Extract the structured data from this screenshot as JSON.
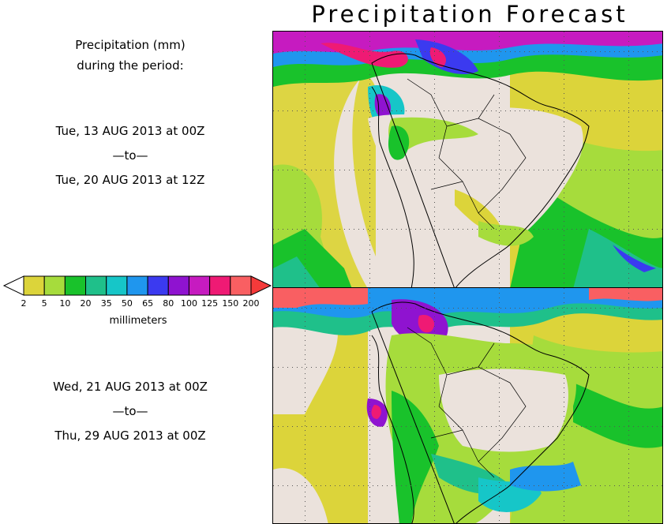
{
  "title": "Precipitation Forecast",
  "header": {
    "line1": "Precipitation (mm)",
    "line2": "during the period:"
  },
  "period1": {
    "start": "Tue, 13 AUG 2013 at 00Z",
    "sep": "—to—",
    "end": "Tue, 20 AUG 2013 at 12Z"
  },
  "period2": {
    "start": "Wed, 21 AUG 2013 at 00Z",
    "sep": "—to—",
    "end": "Thu, 29 AUG 2013 at 00Z"
  },
  "legend": {
    "units": "millimeters",
    "ticks": [
      "2",
      "5",
      "10",
      "20",
      "35",
      "50",
      "65",
      "80",
      "100",
      "125",
      "150",
      "200"
    ],
    "colors": [
      "#dcd43a",
      "#a6dc3c",
      "#19c22b",
      "#1fc08a",
      "#16c6c8",
      "#1f96ee",
      "#3b3af0",
      "#8f13d0",
      "#c61bc0",
      "#ef1a74",
      "#f95f62"
    ],
    "low_color": "#ffffff",
    "high_color": "#f53a3a"
  },
  "map_colors": {
    "land_dry": "#ebe2dc",
    "ocean_dry": "#ebe2dc",
    "yellow": "#dcd43a",
    "lightgreen": "#a6dc3c",
    "green": "#19c22b",
    "teal": "#1fc08a",
    "cyan": "#16c6c8",
    "blue": "#1f96ee",
    "navy": "#3b3af0",
    "purple": "#8f13d0",
    "magenta": "#c61bc0",
    "pink": "#ef1a74",
    "red": "#f95f62"
  }
}
